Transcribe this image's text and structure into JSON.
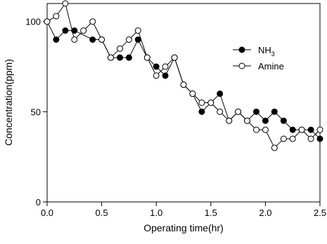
{
  "chart_data": {
    "type": "line",
    "title": "",
    "xlabel": "Operating time(hr)",
    "ylabel": "Concentration(ppm)",
    "xlim": [
      0,
      2.5
    ],
    "ylim": [
      0,
      110
    ],
    "x_ticks": [
      "0.0",
      "0.5",
      "1.0",
      "1.5",
      "2.0",
      "2.5"
    ],
    "y_ticks": [
      "0",
      "50",
      "100"
    ],
    "x_tick_values": [
      0,
      0.5,
      1.0,
      1.5,
      2.0,
      2.5
    ],
    "y_tick_values": [
      0,
      50,
      100
    ],
    "grid": false,
    "legend_position": "top-right",
    "series": [
      {
        "name": "NH3",
        "name_base": "NH",
        "name_sub": "3",
        "marker": "filled-circle",
        "points": [
          [
            0.0,
            100
          ],
          [
            0.083,
            90
          ],
          [
            0.167,
            95
          ],
          [
            0.25,
            95
          ],
          [
            0.417,
            90
          ],
          [
            0.5,
            90
          ],
          [
            0.583,
            80
          ],
          [
            0.667,
            80
          ],
          [
            0.75,
            80
          ],
          [
            0.833,
            90
          ],
          [
            0.917,
            80
          ],
          [
            1.0,
            75
          ],
          [
            1.083,
            70
          ],
          [
            1.167,
            80
          ],
          [
            1.25,
            65
          ],
          [
            1.333,
            60
          ],
          [
            1.417,
            50
          ],
          [
            1.5,
            55
          ],
          [
            1.583,
            60
          ],
          [
            1.667,
            45
          ],
          [
            1.75,
            50
          ],
          [
            1.833,
            45
          ],
          [
            1.917,
            50
          ],
          [
            2.0,
            45
          ],
          [
            2.083,
            50
          ],
          [
            2.167,
            45
          ],
          [
            2.25,
            40
          ],
          [
            2.333,
            40
          ],
          [
            2.417,
            40
          ],
          [
            2.5,
            35
          ]
        ]
      },
      {
        "name": "Amine",
        "marker": "open-circle",
        "points": [
          [
            0.0,
            100
          ],
          [
            0.083,
            103
          ],
          [
            0.167,
            110
          ],
          [
            0.25,
            90
          ],
          [
            0.333,
            95
          ],
          [
            0.417,
            100
          ],
          [
            0.5,
            90
          ],
          [
            0.583,
            80
          ],
          [
            0.667,
            85
          ],
          [
            0.75,
            90
          ],
          [
            0.833,
            95
          ],
          [
            0.917,
            80
          ],
          [
            1.0,
            70
          ],
          [
            1.083,
            75
          ],
          [
            1.167,
            80
          ],
          [
            1.25,
            65
          ],
          [
            1.333,
            60
          ],
          [
            1.417,
            55
          ],
          [
            1.5,
            55
          ],
          [
            1.583,
            50
          ],
          [
            1.667,
            45
          ],
          [
            1.75,
            50
          ],
          [
            1.833,
            45
          ],
          [
            1.917,
            40
          ],
          [
            2.0,
            40
          ],
          [
            2.083,
            30
          ],
          [
            2.167,
            35
          ],
          [
            2.25,
            35
          ],
          [
            2.333,
            40
          ],
          [
            2.417,
            35
          ],
          [
            2.5,
            40
          ]
        ]
      }
    ]
  }
}
